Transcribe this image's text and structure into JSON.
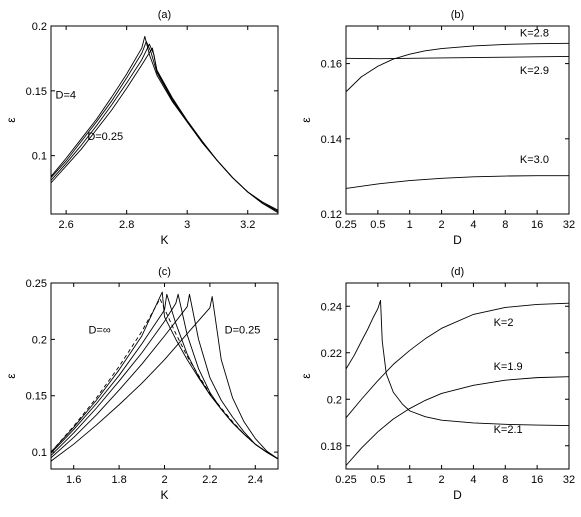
{
  "chart_data": [
    {
      "panel": "(a)",
      "type": "line",
      "title": "(a)",
      "xlabel": "K",
      "ylabel": "ε",
      "xlim": [
        2.55,
        3.3
      ],
      "ylim": [
        0.055,
        0.2
      ],
      "xticks": [
        2.6,
        2.8,
        3.0,
        3.2
      ],
      "xtick_labels": [
        "2.6",
        "2.8",
        "3",
        "3.2"
      ],
      "yticks": [
        0.1,
        0.15,
        0.2
      ],
      "ytick_labels": [
        "0.1",
        "0.15",
        "0.2"
      ],
      "annotations": [
        {
          "text": "D=4",
          "x": 2.565,
          "y": 0.144
        },
        {
          "text": "D=0.25",
          "x": 2.67,
          "y": 0.112
        }
      ],
      "series": [
        {
          "values_desc": "rise then cusp",
          "x": [
            2.55,
            2.6,
            2.65,
            2.7,
            2.75,
            2.8,
            2.85,
            2.86,
            2.875,
            2.9,
            2.95,
            3.0,
            3.05,
            3.1,
            3.15,
            3.2,
            3.25,
            3.3
          ],
          "y": [
            0.084,
            0.098,
            0.113,
            0.128,
            0.145,
            0.163,
            0.183,
            0.192,
            0.178,
            0.162,
            0.142,
            0.126,
            0.11,
            0.096,
            0.083,
            0.072,
            0.064,
            0.058
          ]
        },
        {
          "x": [
            2.55,
            2.6,
            2.65,
            2.7,
            2.75,
            2.8,
            2.85,
            2.865,
            2.88,
            2.9,
            2.95,
            3.0,
            3.05,
            3.1,
            3.15,
            3.2,
            3.25,
            3.3
          ],
          "y": [
            0.083,
            0.096,
            0.111,
            0.126,
            0.142,
            0.16,
            0.179,
            0.188,
            0.18,
            0.164,
            0.143,
            0.126,
            0.11,
            0.096,
            0.083,
            0.072,
            0.064,
            0.057
          ]
        },
        {
          "x": [
            2.55,
            2.6,
            2.65,
            2.7,
            2.75,
            2.8,
            2.85,
            2.875,
            2.89,
            2.9,
            2.95,
            3.0,
            3.05,
            3.1,
            3.15,
            3.2,
            3.25,
            3.3
          ],
          "y": [
            0.081,
            0.094,
            0.108,
            0.123,
            0.139,
            0.156,
            0.174,
            0.186,
            0.178,
            0.165,
            0.144,
            0.127,
            0.111,
            0.096,
            0.083,
            0.072,
            0.063,
            0.057
          ]
        },
        {
          "x": [
            2.55,
            2.6,
            2.65,
            2.7,
            2.75,
            2.8,
            2.85,
            2.885,
            2.9,
            2.95,
            3.0,
            3.05,
            3.1,
            3.15,
            3.2,
            3.25,
            3.3
          ],
          "y": [
            0.079,
            0.092,
            0.105,
            0.12,
            0.135,
            0.152,
            0.17,
            0.183,
            0.166,
            0.145,
            0.127,
            0.111,
            0.096,
            0.083,
            0.072,
            0.063,
            0.056
          ]
        }
      ]
    },
    {
      "panel": "(b)",
      "type": "line",
      "title": "(b)",
      "xlabel": "D",
      "ylabel": "ε",
      "x_scale": "log2",
      "xlim": [
        0.25,
        32
      ],
      "ylim": [
        0.12,
        0.17
      ],
      "xticks": [
        0.25,
        0.5,
        1,
        2,
        4,
        8,
        16,
        32
      ],
      "xtick_labels": [
        "0.25",
        "0.5",
        "1",
        "2",
        "4",
        "8",
        "16",
        "32"
      ],
      "yticks": [
        0.12,
        0.14,
        0.16
      ],
      "ytick_labels": [
        "0.12",
        "0.14",
        "0.16"
      ],
      "annotations": [
        {
          "text": "K=2.8",
          "x": 11,
          "y": 0.1672
        },
        {
          "text": "K=2.9",
          "x": 11,
          "y": 0.1572
        },
        {
          "text": "K=3.0",
          "x": 11,
          "y": 0.1335
        }
      ],
      "series": [
        {
          "name": "K=2.8",
          "x": [
            0.25,
            0.35,
            0.5,
            0.7,
            1,
            1.4,
            2,
            4,
            8,
            16,
            32
          ],
          "y": [
            0.1525,
            0.1565,
            0.1593,
            0.1612,
            0.1625,
            0.1634,
            0.164,
            0.1647,
            0.1651,
            0.1653,
            0.1654
          ]
        },
        {
          "name": "K=2.9",
          "x": [
            0.25,
            0.5,
            1,
            2,
            4,
            8,
            16,
            32
          ],
          "y": [
            0.1614,
            0.1613,
            0.1614,
            0.1615,
            0.1616,
            0.1617,
            0.1618,
            0.1619
          ]
        },
        {
          "name": "K=3.0",
          "x": [
            0.25,
            0.5,
            1,
            2,
            4,
            8,
            16,
            32
          ],
          "y": [
            0.1268,
            0.128,
            0.1289,
            0.1295,
            0.1299,
            0.1301,
            0.1302,
            0.1302
          ]
        }
      ]
    },
    {
      "panel": "(c)",
      "type": "line",
      "title": "(c)",
      "xlabel": "K",
      "ylabel": "ε",
      "xlim": [
        1.5,
        2.5
      ],
      "ylim": [
        0.085,
        0.25
      ],
      "xticks": [
        1.6,
        1.8,
        2.0,
        2.2,
        2.4
      ],
      "xtick_labels": [
        "1.6",
        "1.8",
        "2",
        "2.2",
        "2.4"
      ],
      "yticks": [
        0.1,
        0.15,
        0.2,
        0.25
      ],
      "ytick_labels": [
        "0.1",
        "0.15",
        "0.2",
        "0.25"
      ],
      "annotations": [
        {
          "text": "D=∞",
          "x": 1.665,
          "y": 0.205
        },
        {
          "text": "D=0.25",
          "x": 2.265,
          "y": 0.205
        }
      ],
      "series": [
        {
          "dashed": true,
          "x": [
            1.5,
            1.6,
            1.7,
            1.8,
            1.9,
            1.98,
            2.05,
            2.1,
            2.15,
            2.2,
            2.25,
            2.3,
            2.35,
            2.4,
            2.45,
            2.5
          ],
          "y": [
            0.1,
            0.123,
            0.148,
            0.176,
            0.207,
            0.236,
            0.205,
            0.185,
            0.168,
            0.152,
            0.139,
            0.127,
            0.116,
            0.107,
            0.1,
            0.094
          ]
        },
        {
          "x": [
            1.5,
            1.6,
            1.7,
            1.8,
            1.9,
            1.99,
            2.0,
            2.05,
            2.1,
            2.15,
            2.2,
            2.25,
            2.3,
            2.35,
            2.4,
            2.45,
            2.5
          ],
          "y": [
            0.1,
            0.122,
            0.146,
            0.173,
            0.203,
            0.242,
            0.22,
            0.2,
            0.182,
            0.166,
            0.151,
            0.138,
            0.126,
            0.116,
            0.107,
            0.1,
            0.094
          ]
        },
        {
          "x": [
            1.5,
            1.6,
            1.7,
            1.8,
            1.9,
            2.0,
            2.01,
            2.05,
            2.1,
            2.15,
            2.2,
            2.25,
            2.3,
            2.35,
            2.4,
            2.45,
            2.5
          ],
          "y": [
            0.099,
            0.12,
            0.143,
            0.168,
            0.196,
            0.226,
            0.24,
            0.214,
            0.187,
            0.167,
            0.151,
            0.138,
            0.126,
            0.116,
            0.107,
            0.1,
            0.094
          ]
        },
        {
          "x": [
            1.5,
            1.6,
            1.7,
            1.8,
            1.9,
            2.0,
            2.05,
            2.06,
            2.1,
            2.15,
            2.2,
            2.25,
            2.3,
            2.35,
            2.4,
            2.45,
            2.5
          ],
          "y": [
            0.097,
            0.117,
            0.139,
            0.163,
            0.188,
            0.216,
            0.232,
            0.24,
            0.204,
            0.174,
            0.153,
            0.138,
            0.126,
            0.116,
            0.107,
            0.1,
            0.094
          ]
        },
        {
          "x": [
            1.5,
            1.6,
            1.7,
            1.8,
            1.9,
            2.0,
            2.1,
            2.11,
            2.15,
            2.2,
            2.25,
            2.3,
            2.35,
            2.4,
            2.45,
            2.5
          ],
          "y": [
            0.095,
            0.113,
            0.133,
            0.155,
            0.178,
            0.203,
            0.229,
            0.24,
            0.2,
            0.166,
            0.146,
            0.131,
            0.118,
            0.107,
            0.1,
            0.094
          ]
        },
        {
          "x": [
            1.5,
            1.6,
            1.7,
            1.8,
            1.9,
            2.0,
            2.1,
            2.2,
            2.21,
            2.25,
            2.3,
            2.35,
            2.4,
            2.45,
            2.5
          ],
          "y": [
            0.092,
            0.107,
            0.124,
            0.142,
            0.161,
            0.182,
            0.205,
            0.228,
            0.238,
            0.182,
            0.148,
            0.127,
            0.112,
            0.101,
            0.094
          ]
        }
      ]
    },
    {
      "panel": "(d)",
      "type": "line",
      "title": "(d)",
      "xlabel": "D",
      "ylabel": "ε",
      "x_scale": "log2",
      "xlim": [
        0.25,
        32
      ],
      "ylim": [
        0.17,
        0.25
      ],
      "xticks": [
        0.25,
        0.5,
        1,
        2,
        4,
        8,
        16,
        32
      ],
      "xtick_labels": [
        "0.25",
        "0.5",
        "1",
        "2",
        "4",
        "8",
        "16",
        "32"
      ],
      "yticks": [
        0.18,
        0.2,
        0.22,
        0.24
      ],
      "ytick_labels": [
        "0.18",
        "0.2",
        "0.22",
        "0.24"
      ],
      "annotations": [
        {
          "text": "K=2",
          "x": 6.2,
          "y": 0.2315
        },
        {
          "text": "K=1.9",
          "x": 6.2,
          "y": 0.2125
        },
        {
          "text": "K=2.1",
          "x": 6.2,
          "y": 0.1855
        }
      ],
      "series": [
        {
          "name": "K=2.1",
          "x": [
            0.25,
            0.3,
            0.35,
            0.4,
            0.45,
            0.5,
            0.53,
            0.55,
            0.6,
            0.7,
            0.85,
            1,
            1.4,
            2,
            4,
            8,
            16,
            32
          ],
          "y": [
            0.213,
            0.219,
            0.225,
            0.23,
            0.235,
            0.239,
            0.2425,
            0.225,
            0.211,
            0.203,
            0.198,
            0.195,
            0.1925,
            0.191,
            0.1898,
            0.1892,
            0.1889,
            0.1887
          ]
        },
        {
          "name": "K=2",
          "x": [
            0.25,
            0.35,
            0.5,
            0.7,
            1,
            1.4,
            2,
            4,
            8,
            16,
            32
          ],
          "y": [
            0.192,
            0.2,
            0.208,
            0.215,
            0.221,
            0.226,
            0.2305,
            0.2365,
            0.2395,
            0.2408,
            0.2413
          ]
        },
        {
          "name": "K=1.9",
          "x": [
            0.25,
            0.35,
            0.5,
            0.7,
            1,
            1.4,
            2,
            4,
            8,
            16,
            32
          ],
          "y": [
            0.1715,
            0.179,
            0.186,
            0.1915,
            0.196,
            0.1995,
            0.2025,
            0.206,
            0.2082,
            0.2093,
            0.2097
          ]
        }
      ]
    }
  ]
}
